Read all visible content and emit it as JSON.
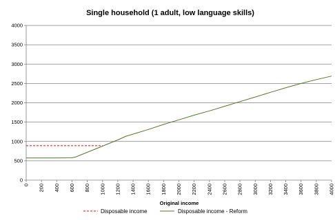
{
  "chart_data": {
    "type": "line",
    "title": "Single household (1 adult, low language skills)",
    "xlabel": "Original income",
    "ylabel": "",
    "xlim": [
      0,
      4000
    ],
    "ylim": [
      0,
      4000
    ],
    "xticks": [
      0,
      200,
      400,
      600,
      800,
      1000,
      1200,
      1400,
      1600,
      1800,
      2000,
      2200,
      2400,
      2600,
      2800,
      3000,
      3200,
      3400,
      3600,
      3800,
      4000
    ],
    "yticks": [
      0,
      500,
      1000,
      1500,
      2000,
      2500,
      3000,
      3500,
      4000
    ],
    "grid": "horizontal",
    "legend": "bottom",
    "series": [
      {
        "name": "Disposable income",
        "color": "#ff0000",
        "style": "dashed",
        "x": [
          0,
          200,
          400,
          600,
          800,
          1000
        ],
        "y": [
          890,
          890,
          890,
          890,
          890,
          890
        ]
      },
      {
        "name": "Disposable income - Reform",
        "color": "#4f7a28",
        "style": "solid",
        "x": [
          0,
          200,
          400,
          600,
          650,
          700,
          800,
          900,
          1000,
          1100,
          1200,
          1300,
          1400,
          1600,
          1800,
          2000,
          2200,
          2400,
          2600,
          2800,
          3000,
          3200,
          3400,
          3600,
          3800,
          4000
        ],
        "y": [
          575,
          575,
          575,
          578,
          600,
          640,
          720,
          800,
          880,
          960,
          1040,
          1130,
          1190,
          1310,
          1440,
          1560,
          1680,
          1790,
          1910,
          2030,
          2150,
          2270,
          2390,
          2500,
          2600,
          2690
        ]
      }
    ]
  }
}
